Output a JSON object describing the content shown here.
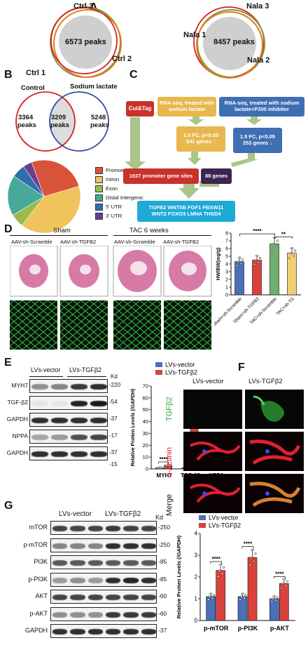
{
  "panels": {
    "A": {
      "label": "A",
      "left": {
        "sets": [
          "Ctrl 1",
          "Ctrl 2",
          "Ctrl 3"
        ],
        "center": "6573 peaks"
      },
      "right": {
        "sets": [
          "Nala 1",
          "Nala 2",
          "Nala 3"
        ],
        "center": "8457 peaks"
      }
    },
    "B": {
      "label": "B",
      "venn": {
        "left_title": "Control",
        "right_title": "Sodium lactate",
        "left_only": "3364",
        "left_only_unit": "peaks",
        "overlap": "3209",
        "overlap_unit": "peaks",
        "right_only": "5248",
        "right_only_unit": "peaks"
      },
      "pie": {
        "legend": [
          "Promoter (<=3k)",
          "Intron",
          "Exon",
          "Distal Intergenic",
          "5' UTR",
          "3' UTR"
        ],
        "colors": [
          "#d9533b",
          "#efc45d",
          "#9aba4d",
          "#46a99a",
          "#2f6fb0",
          "#6a3d8f"
        ],
        "fractions": [
          0.26,
          0.4,
          0.06,
          0.18,
          0.06,
          0.04
        ]
      }
    },
    "C": {
      "label": "C",
      "cut_tag": "Cut&Tag",
      "rna1": "RNA-seq, treated with sodium lactate",
      "rna2": "RNA-seq, treated with sodium lactate+P300 inhibitor",
      "fc1_line1": "1.5 FC, p<0.05",
      "fc1_line2": "241 genes ↑",
      "fc2_line1": "1.5 FC, p<0.05",
      "fc2_line2": "253 genes ↓",
      "promoter": "1027 promoter gene sites",
      "genes88": "88 genes",
      "final_line1": "TGFB2 WNT5B FGF1 FBXW11",
      "final_line2": "WNT2 FOXO3 LMNA THSD4"
    },
    "D": {
      "label": "D",
      "group_sham": "Sham",
      "group_tac": "TAC 6 weeks",
      "cols": [
        "AAV-sh-Scramble",
        "AAV-sh-TGFB2",
        "AAV-sh-Scramble",
        "AAV-sh-TGFB2"
      ],
      "sig1": "****",
      "sig2": "**"
    },
    "E": {
      "label": "E",
      "lanes": [
        "LVs-vector",
        "LVs-TGFβ2"
      ],
      "kd": "Kd",
      "rows": [
        {
          "name": "MYH7",
          "kd": "220"
        },
        {
          "name": "TGF-β2",
          "kd": "54"
        },
        {
          "name": "GAPDH",
          "kd": "37"
        },
        {
          "name": "NPPA",
          "kd": "17"
        },
        {
          "name": "GAPDH",
          "kd": "37"
        }
      ],
      "npp_kd2": "15",
      "sig": [
        "****",
        "****",
        "****"
      ]
    },
    "F": {
      "label": "F",
      "cols": [
        "LVs-vector",
        "LVs-TGFβ2"
      ],
      "rows": [
        "TGFβ2",
        "α-Actinin",
        "Merge"
      ]
    },
    "G": {
      "label": "G",
      "lanes": [
        "LVs-vector",
        "LVs-TGFβ2"
      ],
      "kd": "Kd",
      "rows": [
        {
          "name": "mTOR",
          "kd": "250"
        },
        {
          "name": "p-mTOR",
          "kd": "250"
        },
        {
          "name": "PI3K",
          "kd": "85"
        },
        {
          "name": "p-PI3K",
          "kd": "85"
        },
        {
          "name": "AKT",
          "kd": "60"
        },
        {
          "name": "p-AKT",
          "kd": "60"
        },
        {
          "name": "GAPDH",
          "kd": "37"
        }
      ],
      "sig": [
        "****",
        "****",
        "****"
      ]
    }
  },
  "chart_data": [
    {
      "id": "D-bar",
      "type": "bar",
      "categories": [
        "Sham+sh-Scramble",
        "Sham+sh-TGFB2",
        "TAC+sh-Scramble",
        "TAC+sh-TG"
      ],
      "values": [
        4.3,
        4.5,
        6.6,
        5.4
      ],
      "colors": [
        "#4a70b8",
        "#d9413c",
        "#6fb070",
        "#f0cf72"
      ],
      "ylabel": "HW/BW(mg/g)",
      "ylim": [
        0,
        8
      ],
      "yticks": [
        0,
        1,
        2,
        3,
        4,
        5,
        6,
        7,
        8
      ]
    },
    {
      "id": "E-bar",
      "type": "bar",
      "categories": [
        "MYH7",
        "TGF-β2",
        "NPPA"
      ],
      "series": [
        {
          "name": "LVs-vector",
          "values": [
            1.0,
            1.0,
            1.0
          ],
          "color": "#4a70b8"
        },
        {
          "name": "LVs-TGFβ2",
          "values": [
            3.1,
            49,
            3.3
          ],
          "color": "#d9413c"
        }
      ],
      "ylabel": "Relative Protien Levels (/GAPDH)",
      "ylim": [
        0,
        70
      ],
      "yticks": [
        0,
        10,
        20,
        30,
        40,
        50,
        60,
        70
      ]
    },
    {
      "id": "G-bar",
      "type": "bar",
      "categories": [
        "p-mTOR",
        "p-PI3K",
        "p-AKT"
      ],
      "series": [
        {
          "name": "LVs-vector",
          "values": [
            1.1,
            1.1,
            1.0
          ],
          "color": "#4a70b8"
        },
        {
          "name": "LVs-TGFβ2",
          "values": [
            2.3,
            2.9,
            1.7
          ],
          "color": "#d9413c"
        }
      ],
      "ylabel": "Relative Protien Levels (/GAPDH)",
      "ylim": [
        0,
        4
      ],
      "yticks": [
        0,
        1,
        2,
        3,
        4
      ]
    }
  ]
}
